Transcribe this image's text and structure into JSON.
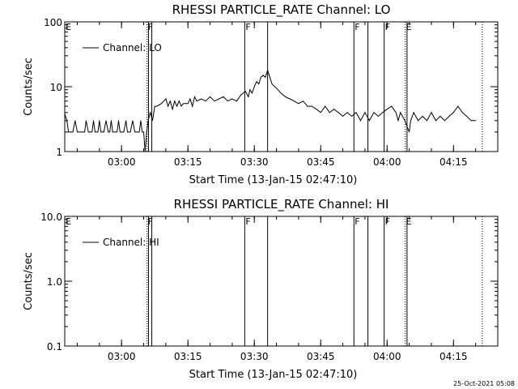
{
  "footer": {
    "timestamp": "25-Oct-2021 05:08"
  },
  "chart_data": [
    {
      "type": "line",
      "title": "RHESSI PARTICLE_RATE Channel: LO",
      "xlabel": "Start Time (13-Jan-15 02:47:10)",
      "ylabel": "Counts/sec",
      "xlim": [
        "02:47:10",
        "04:25:00"
      ],
      "ylim": [
        1,
        100
      ],
      "yscale": "log",
      "xticks": [
        "03:00",
        "03:15",
        "03:30",
        "03:45",
        "04:00",
        "04:15"
      ],
      "yticks": [
        "1",
        "10",
        "100"
      ],
      "legend": {
        "label": "Channel: LO",
        "position": "top-left"
      },
      "grid": false,
      "series": [
        {
          "name": "Channel: LO",
          "x": [
            "02:47:10",
            "02:47:40",
            "02:48:00",
            "02:48:20",
            "02:48:40",
            "02:49:00",
            "02:49:30",
            "02:50:00",
            "02:50:20",
            "02:50:40",
            "02:51:00",
            "02:51:20",
            "02:51:40",
            "02:52:00",
            "02:52:30",
            "02:53:00",
            "02:53:20",
            "02:53:40",
            "02:54:00",
            "02:54:20",
            "02:54:40",
            "02:55:00",
            "02:55:20",
            "02:55:40",
            "02:56:00",
            "02:56:30",
            "02:57:00",
            "02:57:20",
            "02:57:40",
            "02:58:00",
            "02:58:30",
            "02:59:00",
            "02:59:20",
            "02:59:40",
            "03:00:00",
            "03:00:30",
            "03:01:00",
            "03:01:20",
            "03:01:40",
            "03:02:00",
            "03:02:30",
            "03:03:00",
            "03:03:30",
            "03:04:00",
            "03:04:20",
            "03:04:40",
            "03:05:00",
            "03:05:20",
            "03:05:40",
            "03:06:00",
            "03:06:30",
            "03:07:00",
            "03:07:30",
            "03:08:00",
            "03:09:00",
            "03:10:00",
            "03:10:30",
            "03:11:00",
            "03:11:30",
            "03:12:00",
            "03:12:30",
            "03:13:00",
            "03:13:30",
            "03:14:00",
            "03:15:00",
            "03:15:30",
            "03:16:00",
            "03:16:30",
            "03:17:00",
            "03:18:00",
            "03:19:00",
            "03:20:00",
            "03:21:00",
            "03:22:00",
            "03:23:00",
            "03:24:00",
            "03:25:00",
            "03:26:00",
            "03:27:00",
            "03:28:00",
            "03:28:40",
            "03:29:00",
            "03:29:30",
            "03:30:00",
            "03:30:30",
            "03:31:00",
            "03:31:30",
            "03:32:00",
            "03:32:30",
            "03:33:00",
            "03:33:30",
            "03:34:00",
            "03:35:00",
            "03:36:00",
            "03:37:00",
            "03:38:00",
            "03:39:00",
            "03:40:00",
            "03:41:00",
            "03:42:00",
            "03:43:00",
            "03:44:00",
            "03:45:00",
            "03:46:00",
            "03:47:00",
            "03:48:00",
            "03:49:00",
            "03:50:00",
            "03:51:00",
            "03:52:00",
            "03:53:00",
            "03:54:00",
            "03:55:00",
            "03:56:00",
            "03:57:00",
            "03:58:00",
            "03:59:00",
            "04:00:00",
            "04:01:00",
            "04:02:00",
            "04:02:30",
            "04:03:00",
            "04:04:00",
            "04:05:00",
            "04:05:20",
            "04:06:00",
            "04:07:00",
            "04:08:00",
            "04:09:00",
            "04:10:00",
            "04:11:00",
            "04:12:00",
            "04:13:00",
            "04:14:00",
            "04:15:00",
            "04:16:00",
            "04:17:00",
            "04:18:00",
            "04:19:00",
            "04:20:00"
          ],
          "y": [
            3.8,
            3.0,
            2.0,
            2.0,
            2.0,
            2.0,
            3.0,
            2.0,
            2.0,
            2.0,
            2.0,
            2.0,
            2.0,
            3.0,
            2.0,
            2.0,
            2.0,
            3.0,
            2.0,
            2.0,
            2.0,
            3.0,
            2.0,
            2.0,
            2.0,
            3.0,
            2.0,
            2.0,
            3.0,
            2.0,
            2.0,
            2.0,
            3.0,
            2.0,
            2.0,
            2.0,
            3.0,
            2.0,
            2.0,
            2.0,
            3.0,
            2.0,
            2.0,
            2.0,
            3.0,
            2.0,
            2.0,
            1.0,
            2.0,
            3.0,
            4.0,
            3.0,
            5.0,
            5.0,
            5.5,
            6.5,
            5.0,
            6.0,
            4.5,
            6.0,
            5.0,
            6.0,
            5.0,
            5.5,
            5.5,
            6.5,
            5.0,
            7.0,
            6.0,
            6.5,
            6.0,
            7.0,
            6.0,
            6.5,
            7.0,
            6.0,
            6.5,
            6.0,
            7.5,
            8.5,
            7.0,
            9.0,
            8.0,
            10.0,
            12.0,
            11.0,
            14.0,
            15.0,
            14.0,
            18.0,
            14.0,
            11.0,
            9.5,
            8.0,
            7.0,
            6.5,
            6.0,
            5.5,
            6.0,
            5.0,
            5.0,
            4.5,
            4.0,
            5.0,
            4.0,
            4.5,
            4.0,
            3.5,
            4.0,
            3.5,
            4.0,
            3.0,
            4.0,
            3.0,
            4.0,
            3.5,
            4.0,
            4.5,
            5.0,
            4.0,
            3.0,
            4.0,
            3.0,
            2.0,
            3.0,
            4.0,
            3.0,
            3.5,
            3.0,
            4.0,
            3.0,
            3.5,
            3.0,
            3.5,
            4.0,
            5.0,
            4.0,
            3.5,
            3.0,
            3.0
          ]
        }
      ],
      "flags": [
        {
          "label": "E",
          "time": "02:47:10",
          "style": "none"
        },
        {
          "label": "F",
          "time": "03:05:45",
          "style": "dotted"
        },
        {
          "label": "",
          "time": "03:06:05",
          "style": "solid"
        },
        {
          "label": "",
          "time": "03:06:50",
          "style": "solid"
        },
        {
          "label": "F",
          "time": "03:27:50",
          "style": "solid"
        },
        {
          "label": "",
          "time": "03:33:00",
          "style": "solid"
        },
        {
          "label": "F",
          "time": "03:52:30",
          "style": "solid"
        },
        {
          "label": "",
          "time": "03:55:40",
          "style": "solid"
        },
        {
          "label": "F",
          "time": "03:59:20",
          "style": "solid"
        },
        {
          "label": "E",
          "time": "04:04:05",
          "style": "dotted"
        },
        {
          "label": "",
          "time": "04:04:30",
          "style": "solid"
        },
        {
          "label": "",
          "time": "04:21:30",
          "style": "dotted"
        }
      ]
    },
    {
      "type": "line",
      "title": "RHESSI PARTICLE_RATE Channel: HI",
      "xlabel": "Start Time (13-Jan-15 02:47:10)",
      "ylabel": "Counts/sec",
      "xlim": [
        "02:47:10",
        "04:25:00"
      ],
      "ylim": [
        0.1,
        10
      ],
      "yscale": "log",
      "xticks": [
        "03:00",
        "03:15",
        "03:30",
        "03:45",
        "04:00",
        "04:15"
      ],
      "yticks": [
        "0.1",
        "1.0",
        "10.0"
      ],
      "legend": {
        "label": "Channel: HI",
        "position": "top-left"
      },
      "grid": false,
      "series": [
        {
          "name": "Channel: HI",
          "x": [],
          "y": []
        }
      ],
      "flags": [
        {
          "label": "E",
          "time": "02:47:10",
          "style": "none"
        },
        {
          "label": "F",
          "time": "03:05:45",
          "style": "dotted"
        },
        {
          "label": "",
          "time": "03:06:05",
          "style": "solid"
        },
        {
          "label": "",
          "time": "03:06:50",
          "style": "solid"
        },
        {
          "label": "F",
          "time": "03:27:50",
          "style": "solid"
        },
        {
          "label": "",
          "time": "03:33:00",
          "style": "solid"
        },
        {
          "label": "F",
          "time": "03:52:30",
          "style": "solid"
        },
        {
          "label": "",
          "time": "03:55:40",
          "style": "solid"
        },
        {
          "label": "F",
          "time": "03:59:20",
          "style": "solid"
        },
        {
          "label": "E",
          "time": "04:04:05",
          "style": "dotted"
        },
        {
          "label": "",
          "time": "04:04:30",
          "style": "solid"
        },
        {
          "label": "",
          "time": "04:21:30",
          "style": "dotted"
        }
      ]
    }
  ]
}
